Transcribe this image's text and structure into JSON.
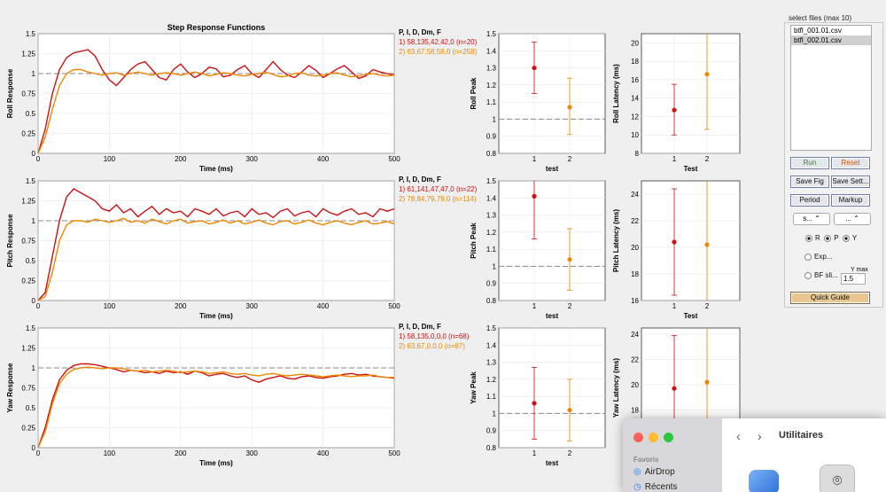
{
  "step_chart": {
    "title": "Step Response Functions",
    "legend_header": "P, I, D, Dm, F",
    "x_label": "Time (ms)",
    "x_ticks": [
      "0",
      "100",
      "200",
      "300",
      "400",
      "500"
    ],
    "y_ticks": [
      "0",
      "0.25",
      "0.5",
      "0.75",
      "1",
      "1.25",
      "1.5"
    ],
    "colors": {
      "series1": "#cc1111",
      "series2": "#ee8800",
      "reference": "#888888"
    }
  },
  "chart_data": [
    {
      "type": "line",
      "ylabel": "Roll Response",
      "xlabel": "Time (ms)",
      "xlim": [
        0,
        500
      ],
      "ylim": [
        0,
        1.5
      ],
      "x": [
        0,
        10,
        20,
        30,
        40,
        50,
        60,
        70,
        80,
        90,
        100,
        110,
        120,
        130,
        140,
        150,
        160,
        170,
        180,
        190,
        200,
        210,
        220,
        230,
        240,
        250,
        260,
        270,
        280,
        290,
        300,
        310,
        320,
        330,
        340,
        350,
        360,
        370,
        380,
        390,
        400,
        410,
        420,
        430,
        440,
        450,
        460,
        470,
        480,
        490,
        500
      ],
      "series": [
        {
          "name": "1) 58,135,42,42,0  (n=20)",
          "values": [
            0,
            0.3,
            0.75,
            1.05,
            1.2,
            1.26,
            1.28,
            1.3,
            1.22,
            1.05,
            0.92,
            0.85,
            0.95,
            1.05,
            1.12,
            1.15,
            1.05,
            0.95,
            0.92,
            1.05,
            1.12,
            1.02,
            0.95,
            1.0,
            1.08,
            1.06,
            0.96,
            0.98,
            1.05,
            1.1,
            1.0,
            0.95,
            1.05,
            1.15,
            1.05,
            0.98,
            0.95,
            1.02,
            1.1,
            1.04,
            0.95,
            1.0,
            1.06,
            1.1,
            1.02,
            0.94,
            0.97,
            1.05,
            1.02,
            1.0,
            0.98
          ]
        },
        {
          "name": "2) 63,67,58,58,0  (n=258)",
          "values": [
            0,
            0.2,
            0.55,
            0.85,
            1.0,
            1.05,
            1.05,
            1.02,
            1.0,
            0.98,
            1.0,
            1.01,
            0.98,
            1.0,
            1.02,
            1.0,
            0.98,
            1.0,
            1.01,
            1.0,
            0.98,
            1.0,
            1.02,
            1.0,
            0.97,
            0.99,
            1.01,
            1.0,
            0.98,
            0.97,
            0.99,
            1.0,
            1.02,
            0.99,
            0.96,
            0.97,
            1.0,
            1.01,
            0.98,
            0.97,
            0.98,
            1.0,
            1.01,
            0.98,
            0.96,
            0.97,
            0.99,
            1.0,
            0.98,
            0.97,
            0.98
          ]
        }
      ]
    },
    {
      "type": "line",
      "ylabel": "Pitch Response",
      "xlabel": "Time (ms)",
      "xlim": [
        0,
        500
      ],
      "ylim": [
        0,
        1.5
      ],
      "x": [
        0,
        10,
        20,
        30,
        40,
        50,
        60,
        70,
        80,
        90,
        100,
        110,
        120,
        130,
        140,
        150,
        160,
        170,
        180,
        190,
        200,
        210,
        220,
        230,
        240,
        250,
        260,
        270,
        280,
        290,
        300,
        310,
        320,
        330,
        340,
        350,
        360,
        370,
        380,
        390,
        400,
        410,
        420,
        430,
        440,
        450,
        460,
        470,
        480,
        490,
        500
      ],
      "series": [
        {
          "name": "1) 61,141,47,47,0  (n=22)",
          "values": [
            0,
            0.1,
            0.55,
            1.0,
            1.3,
            1.4,
            1.35,
            1.3,
            1.25,
            1.15,
            1.12,
            1.2,
            1.1,
            1.15,
            1.05,
            1.12,
            1.18,
            1.08,
            1.15,
            1.1,
            1.12,
            1.05,
            1.15,
            1.12,
            1.08,
            1.15,
            1.06,
            1.1,
            1.12,
            1.05,
            1.15,
            1.08,
            1.1,
            1.04,
            1.12,
            1.15,
            1.06,
            1.1,
            1.12,
            1.05,
            1.15,
            1.1,
            1.07,
            1.12,
            1.15,
            1.08,
            1.1,
            1.05,
            1.15,
            1.12,
            1.15
          ]
        },
        {
          "name": "2) 78,84,79,79,0  (n=114)",
          "values": [
            0,
            0.05,
            0.35,
            0.75,
            0.95,
            1.0,
            1.0,
            0.98,
            1.02,
            1.0,
            0.98,
            1.0,
            1.03,
            0.98,
            1.0,
            0.97,
            1.02,
            0.99,
            0.96,
            1.0,
            1.02,
            0.97,
            0.99,
            1.0,
            0.96,
            0.98,
            1.01,
            0.97,
            1.0,
            0.96,
            0.98,
            1.01,
            0.97,
            0.95,
            0.99,
            1.0,
            0.96,
            0.98,
            1.01,
            0.97,
            0.95,
            0.98,
            1.0,
            0.97,
            0.95,
            0.98,
            1.0,
            0.96,
            0.97,
            0.99,
            0.96
          ]
        }
      ]
    },
    {
      "type": "line",
      "ylabel": "Yaw Response",
      "xlabel": "Time (ms)",
      "xlim": [
        0,
        500
      ],
      "ylim": [
        0,
        1.5
      ],
      "x": [
        0,
        10,
        20,
        30,
        40,
        50,
        60,
        70,
        80,
        90,
        100,
        110,
        120,
        130,
        140,
        150,
        160,
        170,
        180,
        190,
        200,
        210,
        220,
        230,
        240,
        250,
        260,
        270,
        280,
        290,
        300,
        310,
        320,
        330,
        340,
        350,
        360,
        370,
        380,
        390,
        400,
        410,
        420,
        430,
        440,
        450,
        460,
        470,
        480,
        490,
        500
      ],
      "series": [
        {
          "name": "1) 58,135,0,0,0  (n=68)",
          "values": [
            0,
            0.25,
            0.6,
            0.85,
            0.97,
            1.03,
            1.05,
            1.05,
            1.04,
            1.02,
            1.0,
            0.98,
            0.95,
            0.97,
            0.96,
            0.94,
            0.95,
            0.93,
            0.96,
            0.94,
            0.95,
            0.92,
            0.96,
            0.94,
            0.9,
            0.92,
            0.93,
            0.9,
            0.88,
            0.9,
            0.85,
            0.82,
            0.86,
            0.88,
            0.9,
            0.87,
            0.86,
            0.89,
            0.9,
            0.88,
            0.87,
            0.89,
            0.9,
            0.92,
            0.93,
            0.91,
            0.92,
            0.9,
            0.89,
            0.88,
            0.87
          ]
        },
        {
          "name": "2) 63,67,0,0,0  (n=87)",
          "values": [
            0,
            0.2,
            0.55,
            0.8,
            0.92,
            0.98,
            1.0,
            1.01,
            1.0,
            0.99,
            1.0,
            1.0,
            0.99,
            0.97,
            0.96,
            0.97,
            0.95,
            0.96,
            0.97,
            0.96,
            0.94,
            0.95,
            0.96,
            0.95,
            0.93,
            0.94,
            0.95,
            0.93,
            0.92,
            0.93,
            0.91,
            0.9,
            0.92,
            0.93,
            0.91,
            0.9,
            0.91,
            0.92,
            0.91,
            0.9,
            0.89,
            0.9,
            0.91,
            0.9,
            0.89,
            0.9,
            0.9,
            0.91,
            0.89,
            0.88,
            0.88
          ]
        }
      ]
    },
    {
      "type": "scatter",
      "ylabel": "Roll Peak",
      "xlabel": "test",
      "categories": [
        "1",
        "2"
      ],
      "ylim": [
        0.8,
        1.5
      ],
      "y_ticks": [
        "0.8",
        "0.9",
        "1",
        "1.1",
        "1.2",
        "1.3",
        "1.4",
        "1.5"
      ],
      "values": [
        1.3,
        1.07
      ],
      "err_low": [
        1.15,
        0.91
      ],
      "err_high": [
        1.45,
        1.24
      ],
      "reference": 1
    },
    {
      "type": "scatter",
      "ylabel": "Pitch Peak",
      "xlabel": "test",
      "categories": [
        "1",
        "2"
      ],
      "ylim": [
        0.8,
        1.5
      ],
      "y_ticks": [
        "0.8",
        "0.9",
        "1",
        "1.1",
        "1.2",
        "1.3",
        "1.4",
        "1.5"
      ],
      "values": [
        1.41,
        1.04
      ],
      "err_low": [
        1.16,
        0.86
      ],
      "err_high": [
        1.5,
        1.22
      ],
      "reference": 1
    },
    {
      "type": "scatter",
      "ylabel": "Yaw Peak",
      "xlabel": "test",
      "categories": [
        "1",
        "2"
      ],
      "ylim": [
        0.8,
        1.5
      ],
      "y_ticks": [
        "0.8",
        "0.9",
        "1",
        "1.1",
        "1.2",
        "1.3",
        "1.4",
        "1.5"
      ],
      "values": [
        1.06,
        1.02
      ],
      "err_low": [
        0.85,
        0.84
      ],
      "err_high": [
        1.27,
        1.2
      ],
      "reference": 1
    },
    {
      "type": "scatter",
      "ylabel": "Roll Latency (ms)",
      "xlabel": "Test",
      "categories": [
        "1",
        "2"
      ],
      "ylim": [
        8,
        21
      ],
      "y_ticks": [
        "8",
        "10",
        "12",
        "14",
        "16",
        "18",
        "20"
      ],
      "values": [
        12.7,
        16.6
      ],
      "err_low": [
        10.0,
        10.6
      ],
      "err_high": [
        15.5,
        21.0
      ]
    },
    {
      "type": "scatter",
      "ylabel": "Pitch Latency (ms)",
      "xlabel": "Test",
      "categories": [
        "1",
        "2"
      ],
      "ylim": [
        16,
        25
      ],
      "y_ticks": [
        "16",
        "18",
        "20",
        "22",
        "24"
      ],
      "values": [
        20.4,
        20.2
      ],
      "err_low": [
        16.4,
        16.0
      ],
      "err_high": [
        24.4,
        25.0
      ]
    },
    {
      "type": "scatter",
      "ylabel": "Yaw Latency (ms)",
      "xlabel": "Test",
      "categories": [
        "1",
        "2"
      ],
      "ylim": [
        15,
        24.5
      ],
      "y_ticks": [
        "16",
        "18",
        "20",
        "22",
        "24"
      ],
      "values": [
        19.7,
        20.2
      ],
      "err_low": [
        15.0,
        15.0
      ],
      "err_high": [
        23.9,
        24.5
      ]
    }
  ],
  "controls": {
    "panel_title": "select files (max 10)",
    "files": [
      "btfl_001.01.csv",
      "btfl_002.01.csv"
    ],
    "run_label": "Run",
    "reset_label": "Reset",
    "save_fig_label": "Save Fig",
    "save_settings_label": "Save Sett...",
    "period_label": "Period",
    "markup_label": "Markup",
    "select1_label": "s... ⌃",
    "select2_label": "... ⌃",
    "axis_r": "R",
    "axis_p": "P",
    "axis_y": "Y",
    "exp_label": "Exp...",
    "bf_label": "BF sli...",
    "ymax_label": "Y max",
    "ymax_value": "1.5",
    "quick_guide_label": "Quick Guide"
  },
  "finder": {
    "section_label": "Favoris",
    "items": [
      "AirDrop",
      "Récents"
    ],
    "title": "Utilitaires",
    "back_glyph": "‹",
    "forward_glyph": "›"
  }
}
